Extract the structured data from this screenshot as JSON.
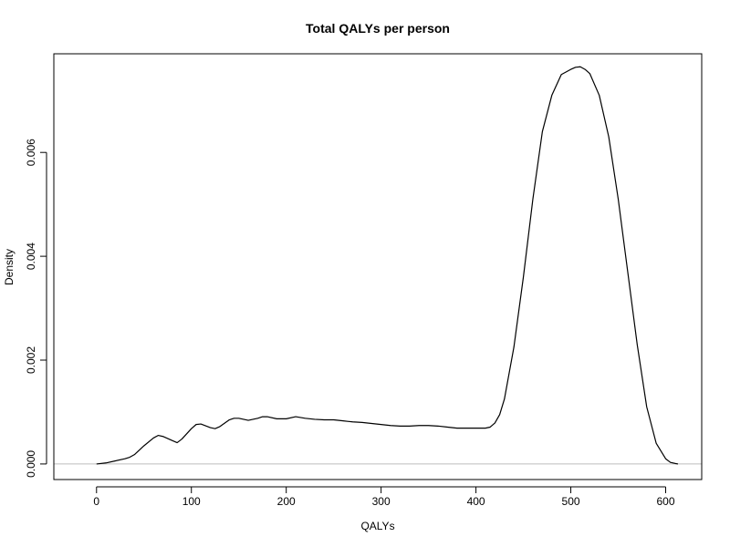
{
  "chart_data": {
    "type": "line",
    "title": "Total QALYs per person",
    "xlabel": "QALYs",
    "ylabel": "Density",
    "xlim": [
      -45,
      638
    ],
    "ylim": [
      -0.0003,
      0.0079
    ],
    "x_ticks": [
      0,
      100,
      200,
      300,
      400,
      500,
      600
    ],
    "x_tick_labels": [
      "0",
      "100",
      "200",
      "300",
      "400",
      "500",
      "600"
    ],
    "y_ticks": [
      0,
      0.002,
      0.004,
      0.006
    ],
    "y_tick_labels": [
      "0.000",
      "0.002",
      "0.004",
      "0.006"
    ],
    "baseline": 0,
    "grid": false,
    "legend": "none",
    "colors": {
      "line": "#000000",
      "baseline": "#bebebe",
      "frame": "#000000"
    },
    "series": [
      {
        "x": [
          0,
          10,
          20,
          30,
          35,
          40,
          50,
          60,
          65,
          70,
          80,
          85,
          90,
          100,
          105,
          110,
          120,
          125,
          130,
          140,
          145,
          150,
          160,
          170,
          175,
          180,
          190,
          200,
          210,
          220,
          230,
          240,
          250,
          260,
          270,
          280,
          290,
          300,
          310,
          320,
          330,
          340,
          350,
          360,
          370,
          380,
          390,
          400,
          410,
          415,
          420,
          425,
          430,
          440,
          450,
          460,
          470,
          480,
          490,
          500,
          505,
          510,
          515,
          520,
          530,
          540,
          550,
          560,
          570,
          580,
          590,
          600,
          605,
          610,
          613
        ],
        "y": [
          0.0,
          2e-05,
          6e-05,
          0.0001,
          0.00013,
          0.00018,
          0.00035,
          0.0005,
          0.00055,
          0.00053,
          0.00045,
          0.00041,
          0.00048,
          0.00068,
          0.00076,
          0.00077,
          0.0007,
          0.00068,
          0.00072,
          0.00085,
          0.00088,
          0.00088,
          0.00084,
          0.00088,
          0.00091,
          0.00091,
          0.00087,
          0.00087,
          0.00091,
          0.00088,
          0.00086,
          0.00085,
          0.00085,
          0.00083,
          0.00081,
          0.0008,
          0.00078,
          0.00076,
          0.00074,
          0.00073,
          0.00073,
          0.00074,
          0.00074,
          0.00073,
          0.00071,
          0.00069,
          0.00069,
          0.00069,
          0.00069,
          0.00071,
          0.00079,
          0.00095,
          0.00125,
          0.00225,
          0.0036,
          0.0051,
          0.0064,
          0.0071,
          0.0075,
          0.0076,
          0.00764,
          0.00765,
          0.0076,
          0.00752,
          0.0071,
          0.0063,
          0.0051,
          0.0037,
          0.0023,
          0.0011,
          0.0004,
          0.0001,
          3e-05,
          1e-05,
          0.0
        ]
      }
    ]
  }
}
